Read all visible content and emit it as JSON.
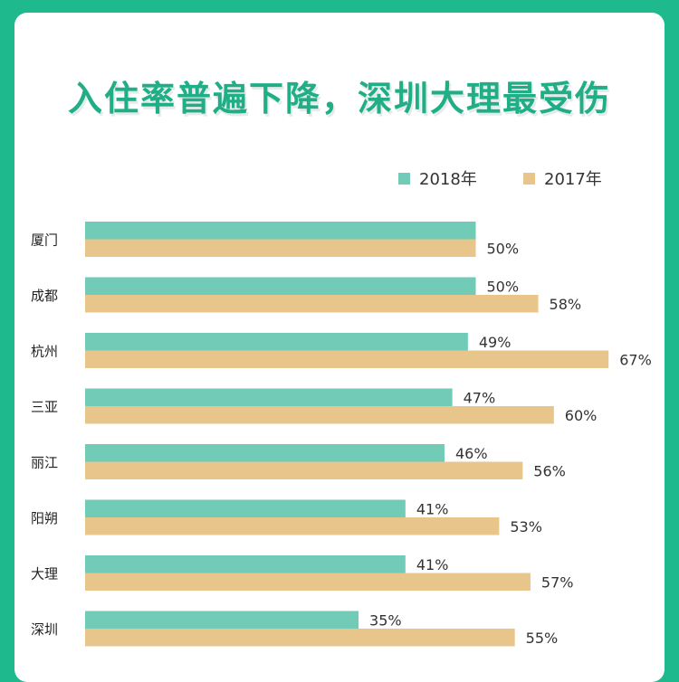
{
  "title": "入住率普遍下降，深圳大理最受伤",
  "colors": {
    "frame": "#1fb98e",
    "series_2018": "#72cbb7",
    "series_2017": "#e7c58b",
    "title": "#1fae86"
  },
  "chart_data": {
    "type": "bar",
    "orientation": "horizontal",
    "title": "入住率普遍下降，深圳大理最受伤",
    "categories": [
      "厦门",
      "成都",
      "杭州",
      "三亚",
      "丽江",
      "阳朔",
      "大理",
      "深圳"
    ],
    "series": [
      {
        "name": "2018年",
        "values": [
          50,
          50,
          49,
          47,
          46,
          41,
          41,
          35
        ],
        "labels": [
          "",
          "50%",
          "49%",
          "47%",
          "46%",
          "41%",
          "41%",
          "35%"
        ]
      },
      {
        "name": "2017年",
        "values": [
          50,
          58,
          67,
          60,
          56,
          53,
          57,
          55
        ],
        "labels": [
          "50%",
          "58%",
          "67%",
          "60%",
          "56%",
          "53%",
          "57%",
          "55%"
        ]
      }
    ],
    "unit": "%",
    "legend_position": "top-right",
    "grid": false
  }
}
